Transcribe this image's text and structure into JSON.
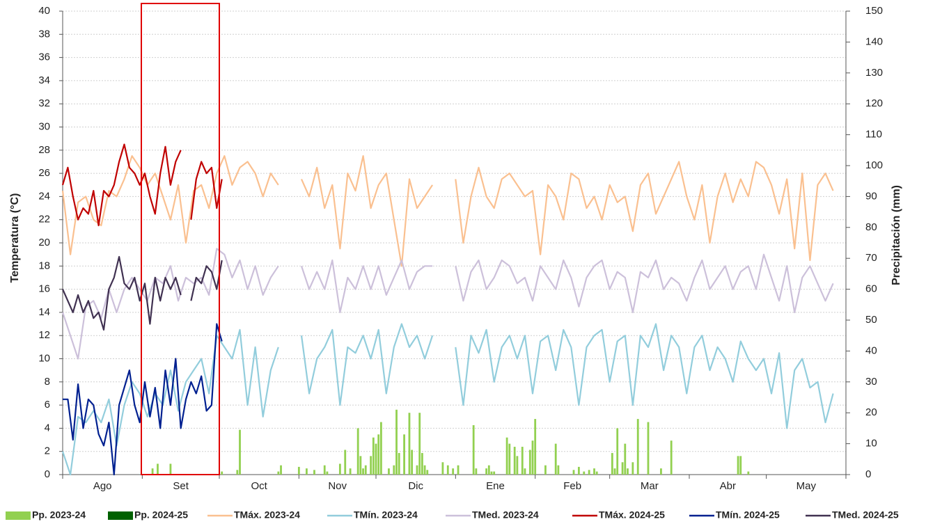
{
  "chart_data": {
    "type": "combo",
    "y_label": "Temperatura (°C)",
    "y2_label": "Precipitación (mm)",
    "months": [
      "Ago",
      "Set",
      "Oct",
      "Nov",
      "Dic",
      "Ene",
      "Feb",
      "Mar",
      "Abr",
      "May"
    ],
    "month_boundaries": [
      0,
      31,
      61,
      92,
      122,
      153,
      184,
      213,
      244,
      274,
      305
    ],
    "xlim": [
      0,
      305
    ],
    "ylim": [
      0,
      40
    ],
    "yticks": [
      0,
      2,
      4,
      6,
      8,
      10,
      12,
      14,
      16,
      18,
      20,
      22,
      24,
      26,
      28,
      30,
      32,
      34,
      36,
      38,
      40
    ],
    "y2lim": [
      0,
      150
    ],
    "y2ticks": [
      0,
      10,
      20,
      30,
      40,
      50,
      60,
      70,
      80,
      90,
      100,
      110,
      120,
      130,
      140,
      150
    ],
    "grid": true,
    "series": [
      {
        "name": "Pp. 2023-24",
        "type": "bar",
        "axis": "y2",
        "color": "#92d050",
        "x": [
          35,
          37,
          42,
          62,
          68,
          69,
          84,
          85,
          92,
          95,
          98,
          102,
          103,
          108,
          110,
          112,
          115,
          116,
          117,
          118,
          120,
          121,
          122,
          123,
          124,
          127,
          129,
          130,
          131,
          133,
          135,
          136,
          138,
          139,
          140,
          141,
          142,
          148,
          150,
          152,
          154,
          160,
          161,
          165,
          166,
          167,
          168,
          173,
          174,
          176,
          177,
          179,
          180,
          182,
          183,
          184,
          188,
          192,
          193,
          199,
          201,
          203,
          205,
          207,
          208,
          214,
          215,
          216,
          218,
          219,
          220,
          222,
          224,
          228,
          233,
          237,
          263,
          264,
          267
        ],
        "values": [
          2,
          3.5,
          3.5,
          1,
          1.5,
          14.5,
          1,
          3,
          2.5,
          2,
          1.5,
          3,
          1,
          3.5,
          8,
          2,
          15,
          6,
          2,
          3,
          6,
          12,
          10,
          13,
          17,
          2,
          3,
          21,
          7,
          13,
          20,
          8,
          3,
          20,
          7,
          3,
          1.5,
          4,
          3,
          2,
          3,
          16,
          2,
          2,
          3,
          1,
          1,
          12,
          10,
          9,
          6,
          9,
          2,
          8,
          11,
          18,
          3,
          10,
          3,
          1.5,
          2.5,
          1,
          1.5,
          2,
          1,
          7,
          2,
          15,
          4,
          10,
          2,
          4,
          18,
          17,
          2,
          11,
          6,
          6,
          1
        ]
      },
      {
        "name": "Pp. 2024-25",
        "type": "bar",
        "axis": "y2",
        "color": "#006100",
        "x": [],
        "values": []
      },
      {
        "name": "TMáx. 2023-24",
        "type": "line",
        "color": "#fac090",
        "x": [
          0,
          3,
          6,
          9,
          12,
          15,
          18,
          21,
          24,
          27,
          30,
          33,
          36,
          39,
          42,
          45,
          48,
          51,
          54,
          57,
          60,
          63,
          66,
          69,
          72,
          75,
          78,
          81,
          84,
          87,
          90,
          93,
          96,
          99,
          102,
          105,
          108,
          111,
          114,
          117,
          120,
          123,
          126,
          129,
          132,
          135,
          138,
          141,
          144,
          147,
          150,
          153,
          156,
          159,
          162,
          165,
          168,
          171,
          174,
          177,
          180,
          183,
          186,
          189,
          192,
          195,
          198,
          201,
          204,
          207,
          210,
          213,
          216,
          219,
          222,
          225,
          228,
          231,
          234,
          237,
          240,
          243,
          246,
          249,
          252,
          255,
          258,
          261,
          264,
          267,
          270,
          273,
          276,
          279,
          282,
          285,
          288,
          291,
          294,
          297,
          300
        ],
        "values": [
          24.5,
          19,
          23.5,
          24,
          22,
          21.5,
          24.5,
          24,
          25.5,
          27.5,
          26.5,
          25,
          26,
          24,
          22,
          25,
          20,
          24.5,
          25,
          23,
          26,
          27.5,
          25,
          26.5,
          27,
          26,
          24,
          26,
          25,
          null,
          null,
          25.5,
          24,
          26.5,
          23,
          25,
          19.5,
          26,
          24.5,
          27.5,
          23,
          25,
          26,
          22,
          18,
          25.5,
          23,
          24,
          25,
          null,
          null,
          25.5,
          20,
          24,
          26.5,
          24,
          23,
          25.5,
          26,
          25,
          24,
          24.5,
          19,
          25,
          24,
          22,
          26,
          25.5,
          23,
          24,
          22,
          25,
          23.5,
          24,
          21,
          25,
          26,
          22.5,
          24,
          25.5,
          27,
          24,
          22,
          25,
          20,
          24,
          26,
          23.5,
          25.5,
          24,
          27,
          26.5,
          25,
          22.5,
          25.5,
          19.5,
          26,
          18.5,
          25,
          26,
          24.5
        ]
      },
      {
        "name": "TMín.  2023-24",
        "type": "line",
        "color": "#92cddc",
        "x": [
          0,
          3,
          6,
          9,
          12,
          15,
          18,
          21,
          24,
          27,
          30,
          33,
          36,
          39,
          42,
          45,
          48,
          51,
          54,
          57,
          60,
          63,
          66,
          69,
          72,
          75,
          78,
          81,
          84,
          87,
          90,
          93,
          96,
          99,
          102,
          105,
          108,
          111,
          114,
          117,
          120,
          123,
          126,
          129,
          132,
          135,
          138,
          141,
          144,
          147,
          150,
          153,
          156,
          159,
          162,
          165,
          168,
          171,
          174,
          177,
          180,
          183,
          186,
          189,
          192,
          195,
          198,
          201,
          204,
          207,
          210,
          213,
          216,
          219,
          222,
          225,
          228,
          231,
          234,
          237,
          240,
          243,
          246,
          249,
          252,
          255,
          258,
          261,
          264,
          267,
          270,
          273,
          276,
          279,
          282,
          285,
          288,
          291,
          294,
          297,
          300
        ],
        "values": [
          2,
          0,
          5,
          4.5,
          5.5,
          4.5,
          6.5,
          2.5,
          6,
          8,
          7,
          5,
          7,
          6,
          9,
          5.5,
          8,
          9,
          10,
          7,
          12,
          11,
          10,
          12.5,
          6,
          11,
          5,
          9,
          11,
          null,
          null,
          12,
          7,
          10,
          11,
          12.5,
          6,
          11,
          10.5,
          12,
          10,
          12.5,
          7,
          11,
          13,
          11,
          12,
          10,
          12,
          null,
          null,
          11,
          6,
          12,
          10.5,
          12.5,
          8,
          11,
          12,
          10,
          12,
          7,
          11.5,
          12,
          9,
          12.5,
          11,
          6,
          11,
          12,
          12.5,
          8,
          11.5,
          12,
          6,
          12,
          11,
          13,
          9,
          12,
          11,
          7,
          11,
          12,
          9,
          11,
          10,
          8,
          11.5,
          10,
          9,
          10,
          7,
          10.5,
          4,
          9,
          10,
          7.5,
          8,
          4.5,
          7
        ]
      },
      {
        "name": "TMed.  2023-24",
        "type": "line",
        "color": "#ccc0da",
        "x": [
          0,
          3,
          6,
          9,
          12,
          15,
          18,
          21,
          24,
          27,
          30,
          33,
          36,
          39,
          42,
          45,
          48,
          51,
          54,
          57,
          60,
          63,
          66,
          69,
          72,
          75,
          78,
          81,
          84,
          87,
          90,
          93,
          96,
          99,
          102,
          105,
          108,
          111,
          114,
          117,
          120,
          123,
          126,
          129,
          132,
          135,
          138,
          141,
          144,
          147,
          150,
          153,
          156,
          159,
          162,
          165,
          168,
          171,
          174,
          177,
          180,
          183,
          186,
          189,
          192,
          195,
          198,
          201,
          204,
          207,
          210,
          213,
          216,
          219,
          222,
          225,
          228,
          231,
          234,
          237,
          240,
          243,
          246,
          249,
          252,
          255,
          258,
          261,
          264,
          267,
          270,
          273,
          276,
          279,
          282,
          285,
          288,
          291,
          294,
          297,
          300
        ],
        "values": [
          14,
          12,
          10,
          14.5,
          15,
          13.5,
          16,
          14,
          16,
          17,
          16,
          15,
          17,
          16.5,
          18,
          15,
          17,
          16.5,
          17,
          15.5,
          19.5,
          19,
          17,
          18.5,
          16,
          18,
          15.5,
          17,
          18,
          null,
          null,
          18,
          16,
          17.5,
          16,
          18.5,
          14,
          17,
          16,
          18,
          16,
          18,
          15.5,
          17,
          18.5,
          16,
          17.5,
          18,
          18,
          null,
          null,
          18,
          15,
          17.5,
          18.5,
          16,
          17,
          18.5,
          18,
          16.5,
          17,
          15,
          18,
          17,
          16,
          18.5,
          17,
          14.5,
          17,
          18,
          18.5,
          16,
          17.5,
          17,
          14,
          17.5,
          17,
          18.5,
          16,
          17,
          16.5,
          15,
          17,
          18.5,
          16,
          17,
          18,
          16,
          17.5,
          18,
          16,
          19,
          17,
          15,
          18,
          14,
          17,
          18,
          16.5,
          15,
          16.5
        ]
      },
      {
        "name": "TMáx. 2024-25",
        "type": "line",
        "color": "#c00000",
        "x": [
          0,
          2,
          4,
          6,
          8,
          10,
          12,
          14,
          16,
          18,
          20,
          22,
          24,
          26,
          28,
          30,
          32,
          34,
          36,
          38,
          40,
          42,
          44,
          46,
          48,
          50,
          52,
          54,
          56,
          58,
          60,
          62
        ],
        "values": [
          25,
          26.5,
          24,
          22,
          23,
          22.5,
          24.5,
          21.5,
          24.5,
          24,
          25,
          27,
          28.5,
          26.5,
          26,
          25,
          26,
          24,
          22.5,
          26,
          28.3,
          25,
          27,
          28,
          null,
          22,
          25.5,
          27,
          26,
          26.5,
          23,
          25.5
        ]
      },
      {
        "name": "TMín. 2024-25",
        "type": "line",
        "color": "#002090",
        "x": [
          0,
          2,
          4,
          6,
          8,
          10,
          12,
          14,
          16,
          18,
          20,
          22,
          24,
          26,
          28,
          30,
          32,
          34,
          36,
          38,
          40,
          42,
          44,
          46,
          48,
          50,
          52,
          54,
          56,
          58,
          60,
          62
        ],
        "values": [
          6.5,
          6.5,
          3,
          7.8,
          4,
          6.5,
          6,
          3.5,
          2.5,
          4.5,
          0,
          6,
          7.5,
          9,
          6,
          4.5,
          8,
          5,
          7.5,
          4,
          9,
          6,
          10,
          4,
          6.5,
          8,
          7,
          8.5,
          5.5,
          6,
          13,
          11.5
        ]
      },
      {
        "name": "TMed. 2024-25",
        "type": "line",
        "color": "#403151",
        "x": [
          0,
          2,
          4,
          6,
          8,
          10,
          12,
          14,
          16,
          18,
          20,
          22,
          24,
          26,
          28,
          30,
          32,
          34,
          36,
          38,
          40,
          42,
          44,
          46,
          48,
          50,
          52,
          54,
          56,
          58,
          60,
          62
        ],
        "values": [
          16,
          15,
          14,
          15.5,
          14,
          15,
          13.5,
          14,
          12.5,
          16,
          17,
          18.8,
          16.5,
          16,
          17,
          15,
          16.5,
          13,
          17,
          15,
          17,
          16,
          17,
          15.5,
          null,
          15,
          17,
          16.5,
          18,
          17.5,
          16,
          18.5
        ]
      }
    ]
  }
}
